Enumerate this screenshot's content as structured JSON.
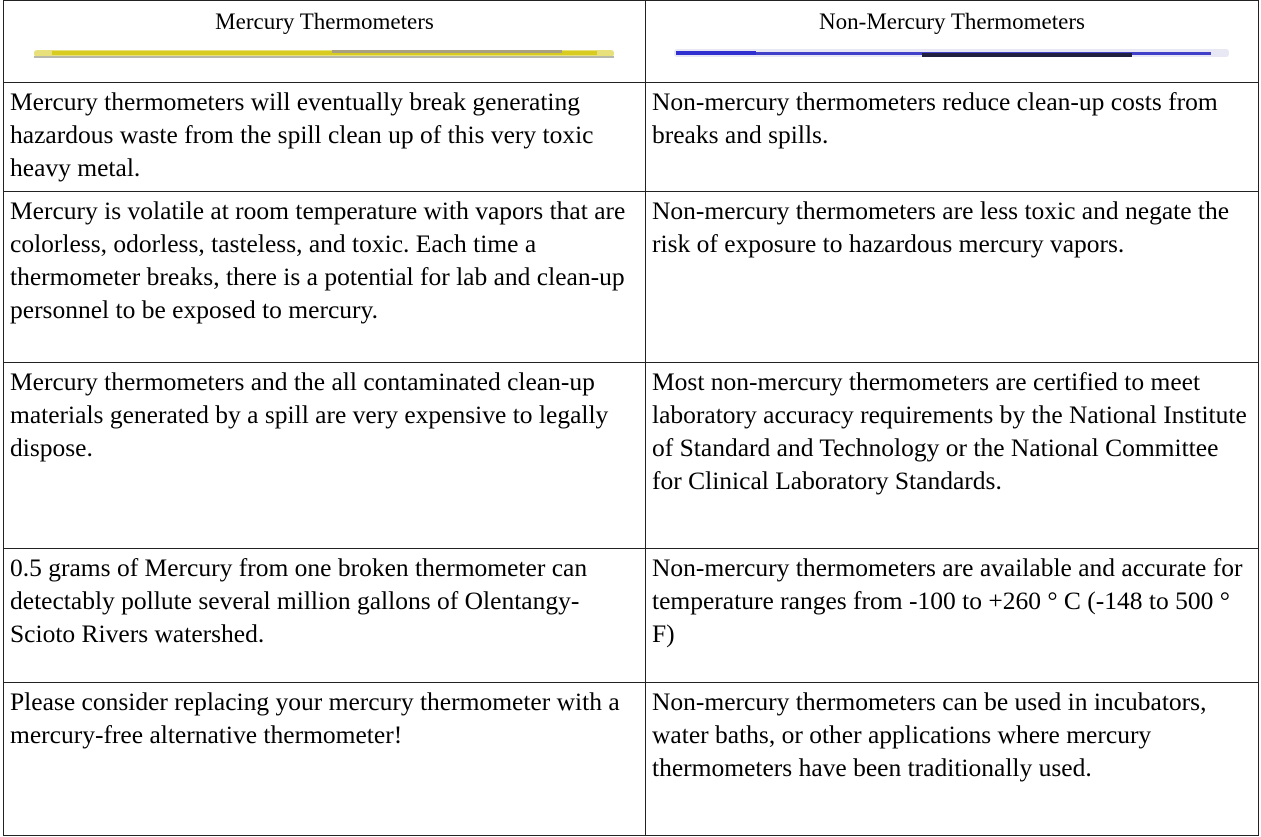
{
  "table": {
    "header": [
      "Mercury Thermometers",
      "Non-Mercury Thermometers"
    ],
    "rows": [
      [
        "Mercury thermometers will eventually break generating hazardous waste from the spill clean up of this very toxic heavy metal.",
        "Non-mercury thermometers reduce clean-up costs from breaks and spills."
      ],
      [
        "Mercury is volatile at room temperature with vapors that are colorless, odorless, tasteless, and toxic. Each time a thermometer breaks, there is a potential for lab and clean-up personnel to be exposed to mercury.",
        "Non-mercury thermometers are less toxic and negate the risk of exposure to hazardous mercury vapors."
      ],
      [
        "Mercury thermometers and the all contaminated clean-up materials generated by a spill are very expensive to legally dispose.",
        "Most non-mercury thermometers are certified to meet laboratory accuracy requirements by the National Institute of Standard and Technology or the National Committee for Clinical Laboratory Standards."
      ],
      [
        "0.5 grams of Mercury from one broken thermometer can detectably pollute several million gallons of Olentangy-Scioto Rivers watershed.",
        "Non-mercury thermometers are available and accurate for temperature ranges from -100 to +260 ° C (-148 to 500 ° F)"
      ],
      [
        "Please consider replacing your mercury thermometer with a mercury-free alternative thermometer!",
        "Non-mercury thermometers can be used in incubators, water baths, or other applications where mercury thermometers have been traditionally used."
      ]
    ]
  }
}
